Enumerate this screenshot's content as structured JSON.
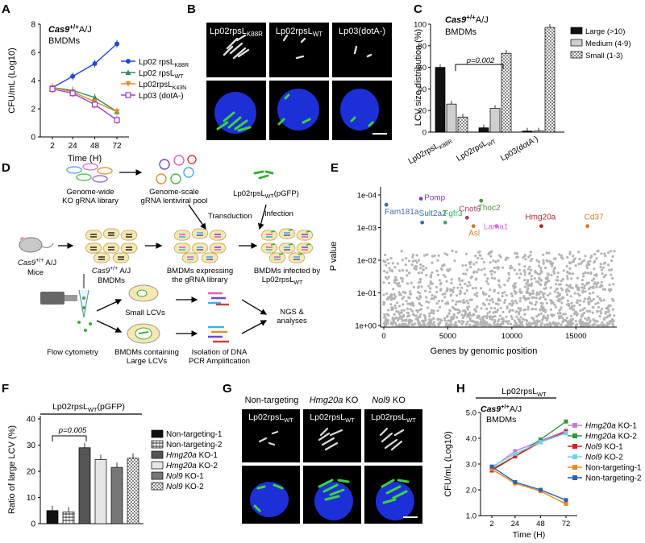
{
  "panels": {
    "A": "A",
    "B": "B",
    "C": "C",
    "D": "D",
    "E": "E",
    "F": "F",
    "G": "G",
    "H": "H"
  },
  "chart_data": [
    {
      "id": "A",
      "type": "line",
      "annotation_1": "Cas9",
      "annotation_1_sup": "+/+",
      "annotation_1_rest": "A/J",
      "annotation_2": "BMDMs",
      "xlabel": "Time (H)",
      "ylabel": "CFU/mL (Log10)",
      "x": [
        2,
        24,
        48,
        72
      ],
      "xticks": [
        "2",
        "24",
        "48",
        "72"
      ],
      "ylim": [
        0,
        8
      ],
      "yticks": [
        "0",
        "2",
        "4",
        "6",
        "8"
      ],
      "series": [
        {
          "name": "Lp02 rpsL",
          "sub": "K88R",
          "color": "#2348d6",
          "marker": "circle",
          "values": [
            3.5,
            4.3,
            5.2,
            6.6
          ]
        },
        {
          "name": "Lp02 rpsL",
          "sub": "WT",
          "color": "#2e8b57",
          "marker": "triangle",
          "values": [
            3.5,
            3.3,
            2.8,
            1.8
          ]
        },
        {
          "name": "Lp02rpsL",
          "sub": "K43N",
          "color": "#e08a2a",
          "marker": "triangle-down",
          "values": [
            3.5,
            3.2,
            2.5,
            1.8
          ]
        },
        {
          "name": "Lp03 (dotA-)",
          "sub": "",
          "color": "#9b40c8",
          "marker": "square",
          "values": [
            3.4,
            3.1,
            2.3,
            1.2
          ]
        }
      ]
    },
    {
      "id": "C",
      "type": "bar",
      "annotation_1": "Cas9",
      "annotation_1_sup": "+/+",
      "annotation_1_rest": "A/J",
      "annotation_2": "BMDMs",
      "ylabel": "LCV size distribution (%)",
      "ylim": [
        0,
        100
      ],
      "yticks": [
        "0",
        "20",
        "40",
        "60",
        "80",
        "100"
      ],
      "categories": [
        "Lp02rpsL-K88R",
        "Lp02rpsL-WT",
        "Lp03(dotA-)"
      ],
      "category_labels": [
        {
          "main": "Lp02rpsL",
          "sub": "K88R"
        },
        {
          "main": "Lp02rpsL",
          "sub": "WT"
        },
        {
          "main": "Lp03(dotA",
          "sub": "-",
          "tail": ")"
        }
      ],
      "series": [
        {
          "name": "Large (>10)",
          "fill": "#111111",
          "values": [
            60,
            4,
            1
          ]
        },
        {
          "name": "Medium (4-9)",
          "fill": "#cfcfcf",
          "values": [
            26,
            22,
            1
          ]
        },
        {
          "name": "Small (1-3)",
          "fill": "checker",
          "values": [
            14,
            73,
            97
          ]
        }
      ],
      "annotation_p": "p=0.002"
    },
    {
      "id": "E",
      "type": "scatter",
      "xlabel": "Genes by genomic position",
      "ylabel": "P value",
      "xticks": [
        "0",
        "5000",
        "10000",
        "15000"
      ],
      "xlim": [
        0,
        18000
      ],
      "yticks": [
        "1e-04",
        "1e-03",
        "1e-02",
        "1e-01",
        "1e+00"
      ],
      "log_y": true,
      "highlighted": [
        {
          "name": "Fam181a",
          "x": 200,
          "p": 0.0002,
          "color": "#3a6fb0"
        },
        {
          "name": "Pomp",
          "x": 2900,
          "p": 0.00013,
          "color": "#7b3fa0"
        },
        {
          "name": "Thoc2",
          "x": 7600,
          "p": 0.00015,
          "color": "#4a9a3a"
        },
        {
          "name": "Sult2a2",
          "x": 3000,
          "p": 0.0007,
          "color": "#3a6fb0"
        },
        {
          "name": "Fgfr3",
          "x": 4800,
          "p": 0.0007,
          "color": "#3aa860"
        },
        {
          "name": "Cnot6",
          "x": 6500,
          "p": 0.0005,
          "color": "#b03a6a"
        },
        {
          "name": "Asl",
          "x": 7000,
          "p": 0.0009,
          "color": "#d07a2a"
        },
        {
          "name": "Lama1",
          "x": 8800,
          "p": 0.0009,
          "color": "#d86ad8"
        },
        {
          "name": "Hmg20a",
          "x": 12300,
          "p": 0.0009,
          "color": "#b0282a"
        },
        {
          "name": "Cd37",
          "x": 15900,
          "p": 0.0009,
          "color": "#d07a2a"
        }
      ]
    },
    {
      "id": "F",
      "type": "bar",
      "header": "Lp02rpsL",
      "header_sub": "WT",
      "header_tail": "(pGFP)",
      "ylabel": "Ratio of large LCV (%)",
      "ylim": [
        0,
        40
      ],
      "yticks": [
        "0",
        "10",
        "20",
        "30",
        "40"
      ],
      "annotation_p": "p=0.005",
      "series": [
        {
          "name": "Non-targeting-1",
          "fill": "#111111",
          "value": 5
        },
        {
          "name": "Non-targeting-2",
          "fill": "hatch",
          "value": 4.5
        },
        {
          "name": "Hmg20a KO-1",
          "fill": "#555555",
          "value": 29
        },
        {
          "name": "Hmg20a KO-2",
          "fill": "#e6e6e6",
          "value": 24.5
        },
        {
          "name": "Nol9 KO-1",
          "fill": "#777777",
          "value": 21.5
        },
        {
          "name": "Nol9 KO-2",
          "fill": "checker",
          "value": 25
        }
      ]
    },
    {
      "id": "H",
      "type": "line",
      "header": "Lp02rpsL",
      "header_sub": "WT",
      "annotation_1": "Cas9",
      "annotation_1_sup": "+/+",
      "annotation_1_rest": "A/J",
      "annotation_2": "BMDMs",
      "xlabel": "Time (H)",
      "ylabel": "CFU/mL (Log10)",
      "x": [
        2,
        24,
        48,
        72
      ],
      "xticks": [
        "2",
        "24",
        "48",
        "72"
      ],
      "ylim": [
        1.0,
        5.0
      ],
      "yticks": [
        "1.0",
        "2.0",
        "3.0",
        "4.0",
        "5.0"
      ],
      "series": [
        {
          "name": "Hmg20a KO-1",
          "color": "#c77adc",
          "values": [
            2.85,
            3.5,
            3.9,
            4.3
          ]
        },
        {
          "name": "Hmg20a KO-2",
          "color": "#2e9a3a",
          "values": [
            2.8,
            3.3,
            3.95,
            4.65
          ]
        },
        {
          "name": "Nol9 KO-1",
          "color": "#d42020",
          "values": [
            2.75,
            3.3,
            3.85,
            4.25
          ]
        },
        {
          "name": "Nol9 KO-2",
          "color": "#6fd0f0",
          "values": [
            2.9,
            3.4,
            3.85,
            4.2
          ]
        },
        {
          "name": "Non-targeting-1",
          "color": "#f0881a",
          "values": [
            2.8,
            2.25,
            1.95,
            1.45
          ]
        },
        {
          "name": "Non-targeting-2",
          "color": "#2c5fb0",
          "values": [
            2.9,
            2.3,
            2.0,
            1.6
          ]
        }
      ]
    }
  ],
  "panel_B": {
    "labels": [
      {
        "main": "Lp02rpsL",
        "sub": "K88R"
      },
      {
        "main": "Lp02rpsL",
        "sub": "WT"
      },
      {
        "main": "Lp03(dotA-)",
        "sub": ""
      }
    ]
  },
  "panel_D": {
    "library": "Genome-wide\nKO gRNA library",
    "pool": "Genome-scale\ngRNA lentiviral pool",
    "strain": "Lp02rpsL",
    "strain_sub": "WT",
    "strain_tail": "(pGFP)",
    "transduction": "Transduction",
    "infection": "Infection",
    "mice_1": "Cas9",
    "mice_sup": "+/+",
    "mice_2": " A/J",
    "mice_3": "Mice",
    "bmdm_1": "Cas9",
    "bmdm_sup": "+/+",
    "bmdm_2": " A/J",
    "bmdm_3": "BMDMs",
    "expressing": "BMDMs expressing\nthe gRNA library",
    "infected_1": "BMDMs infected by",
    "infected_2": "Lp02rpsL",
    "infected_sub": "WT",
    "flow": "Flow cytometry",
    "small": "Small LCVs",
    "large": "BMDMs containing\nLarge LCVs",
    "isolation": "Isolation of DNA\nPCR Amplification",
    "ngs": "NGS &\nanalyses"
  },
  "panel_G": {
    "headers": [
      "Non-targeting",
      "Hmg20a",
      "Nol9"
    ],
    "header_suffix": " KO",
    "label_main": "Lp02rpsL",
    "label_sub": "WT"
  }
}
